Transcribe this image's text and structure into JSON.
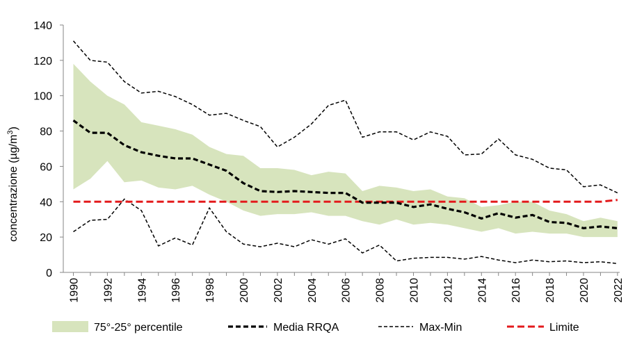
{
  "chart_data": {
    "type": "line",
    "ylabel_main": "concentrazione (µg/m",
    "ylabel_sup": "3",
    "ylabel_end": ")",
    "ylim": [
      0,
      140
    ],
    "yticks": [
      0,
      20,
      40,
      60,
      80,
      100,
      120,
      140
    ],
    "x": [
      1990,
      1991,
      1992,
      1993,
      1994,
      1995,
      1996,
      1997,
      1998,
      1999,
      2000,
      2001,
      2002,
      2003,
      2004,
      2005,
      2006,
      2007,
      2008,
      2009,
      2010,
      2011,
      2012,
      2013,
      2014,
      2015,
      2016,
      2017,
      2018,
      2019,
      2020,
      2021,
      2022
    ],
    "xticks": [
      1990,
      1992,
      1994,
      1996,
      1998,
      2000,
      2002,
      2004,
      2006,
      2008,
      2010,
      2012,
      2014,
      2016,
      2018,
      2020,
      2022
    ],
    "grid": false,
    "legend_position": "bottom",
    "series": [
      {
        "name": "75°-25° percentile",
        "kind": "band",
        "color": "#d7e4bd",
        "upper": [
          118,
          108,
          100,
          95,
          85,
          83,
          81,
          78,
          71,
          67,
          66,
          59,
          59,
          58,
          55,
          57,
          56,
          46,
          49,
          48,
          46,
          47,
          43,
          42,
          37,
          38,
          40,
          40,
          35,
          33,
          29,
          31,
          29
        ],
        "lower": [
          47,
          53,
          63,
          51,
          52,
          48,
          47,
          49,
          44,
          40,
          35,
          32,
          33,
          33,
          34,
          32,
          32,
          29,
          27,
          30,
          27,
          28,
          27,
          25,
          23,
          25,
          22,
          23,
          22,
          22,
          20,
          20,
          20
        ]
      },
      {
        "name": "Media RRQA",
        "kind": "line",
        "color": "#000000",
        "values": [
          86,
          79,
          79,
          72,
          68,
          66,
          64.5,
          64.5,
          61,
          57.5,
          50.5,
          46,
          45.5,
          46,
          45.5,
          45,
          45,
          39.5,
          39.5,
          39.5,
          37,
          38.5,
          36,
          34,
          30.5,
          33.5,
          31,
          32.5,
          28.5,
          28,
          25,
          26,
          25
        ]
      },
      {
        "name": "Max-Min",
        "kind": "minmax",
        "color": "#000000",
        "max": [
          131,
          120,
          119,
          108,
          101.5,
          102.5,
          99.5,
          95,
          89,
          90,
          86,
          82.5,
          71,
          76.5,
          84,
          94.5,
          97.5,
          76.5,
          79.5,
          79.5,
          75,
          79.5,
          77,
          66.5,
          67,
          75.5,
          66.5,
          64,
          59,
          58,
          48.5,
          49.5,
          45
        ],
        "min": [
          23,
          29.5,
          30,
          41.5,
          35,
          15,
          19.5,
          15.5,
          36.5,
          23,
          16,
          14.5,
          16.5,
          14.5,
          18.5,
          16,
          19,
          11,
          15.5,
          6.5,
          8,
          8.5,
          8.5,
          7.5,
          9,
          7,
          5.5,
          7,
          6,
          6.5,
          5.5,
          6,
          5
        ]
      },
      {
        "name": "Limite",
        "kind": "limit",
        "color": "#e31a1c",
        "values": [
          40,
          40,
          40,
          40,
          40,
          40,
          40,
          40,
          40,
          40,
          40,
          40,
          40,
          40,
          40,
          40,
          40,
          40,
          40,
          40,
          40,
          40,
          40,
          40,
          40,
          40,
          40,
          40,
          40,
          40,
          40,
          40,
          41
        ]
      }
    ]
  }
}
